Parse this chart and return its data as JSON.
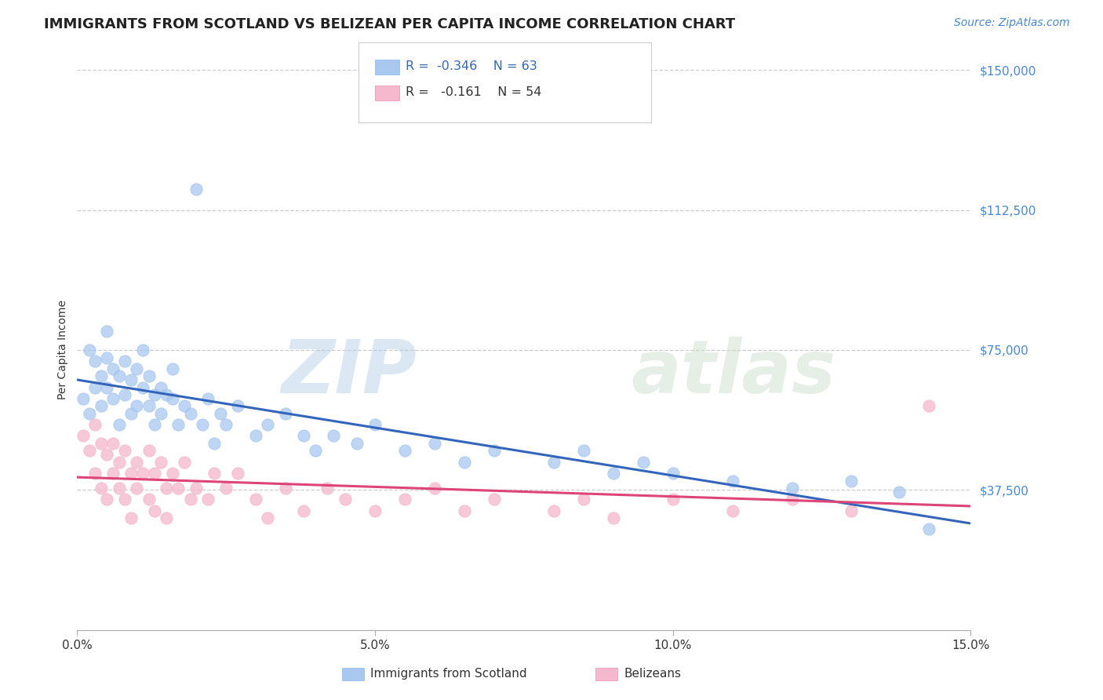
{
  "title": "IMMIGRANTS FROM SCOTLAND VS BELIZEAN PER CAPITA INCOME CORRELATION CHART",
  "source_text": "Source: ZipAtlas.com",
  "ylabel": "Per Capita Income",
  "xlim": [
    0.0,
    0.15
  ],
  "ylim": [
    0,
    150000
  ],
  "xtick_vals": [
    0.0,
    0.05,
    0.1,
    0.15
  ],
  "xtick_labels": [
    "0.0%",
    "5.0%",
    "10.0%",
    "15.0%"
  ],
  "ytick_vals": [
    37500,
    75000,
    112500,
    150000
  ],
  "ytick_labels": [
    "$37,500",
    "$75,000",
    "$112,500",
    "$150,000"
  ],
  "grid_color": "#cccccc",
  "background_color": "#ffffff",
  "scatter_blue_color": "#a8c8f0",
  "scatter_pink_color": "#f5b8cc",
  "line_blue_color": "#3366bb",
  "line_pink_color": "#dd4477",
  "legend_R1": "-0.346",
  "legend_N1": "63",
  "legend_R2": "-0.161",
  "legend_N2": "54",
  "legend_label1": "Immigrants from Scotland",
  "legend_label2": "Belizeans",
  "watermark_zip": "ZIP",
  "watermark_atlas": "atlas",
  "title_fontsize": 13,
  "axis_label_fontsize": 10,
  "tick_fontsize": 11,
  "ytick_color": "#4488dd",
  "source_fontsize": 10,
  "blue_scatter_x": [
    0.001,
    0.002,
    0.002,
    0.003,
    0.003,
    0.004,
    0.004,
    0.005,
    0.005,
    0.005,
    0.006,
    0.006,
    0.007,
    0.007,
    0.008,
    0.008,
    0.009,
    0.009,
    0.01,
    0.01,
    0.011,
    0.011,
    0.012,
    0.012,
    0.013,
    0.013,
    0.014,
    0.014,
    0.015,
    0.016,
    0.016,
    0.017,
    0.018,
    0.019,
    0.02,
    0.021,
    0.022,
    0.023,
    0.024,
    0.025,
    0.027,
    0.03,
    0.032,
    0.035,
    0.038,
    0.04,
    0.043,
    0.047,
    0.05,
    0.055,
    0.06,
    0.065,
    0.07,
    0.08,
    0.085,
    0.09,
    0.095,
    0.1,
    0.11,
    0.12,
    0.13,
    0.138,
    0.143
  ],
  "blue_scatter_y": [
    62000,
    58000,
    75000,
    65000,
    72000,
    68000,
    60000,
    73000,
    65000,
    80000,
    70000,
    62000,
    68000,
    55000,
    72000,
    63000,
    67000,
    58000,
    70000,
    60000,
    65000,
    75000,
    60000,
    68000,
    63000,
    55000,
    65000,
    58000,
    63000,
    62000,
    70000,
    55000,
    60000,
    58000,
    118000,
    55000,
    62000,
    50000,
    58000,
    55000,
    60000,
    52000,
    55000,
    58000,
    52000,
    48000,
    52000,
    50000,
    55000,
    48000,
    50000,
    45000,
    48000,
    45000,
    48000,
    42000,
    45000,
    42000,
    40000,
    38000,
    40000,
    37000,
    27000
  ],
  "pink_scatter_x": [
    0.001,
    0.002,
    0.003,
    0.003,
    0.004,
    0.004,
    0.005,
    0.005,
    0.006,
    0.006,
    0.007,
    0.007,
    0.008,
    0.008,
    0.009,
    0.009,
    0.01,
    0.01,
    0.011,
    0.012,
    0.012,
    0.013,
    0.013,
    0.014,
    0.015,
    0.015,
    0.016,
    0.017,
    0.018,
    0.019,
    0.02,
    0.022,
    0.023,
    0.025,
    0.027,
    0.03,
    0.032,
    0.035,
    0.038,
    0.042,
    0.045,
    0.05,
    0.055,
    0.06,
    0.065,
    0.07,
    0.08,
    0.085,
    0.09,
    0.1,
    0.11,
    0.12,
    0.13,
    0.143
  ],
  "pink_scatter_y": [
    52000,
    48000,
    55000,
    42000,
    50000,
    38000,
    47000,
    35000,
    50000,
    42000,
    45000,
    38000,
    48000,
    35000,
    42000,
    30000,
    45000,
    38000,
    42000,
    48000,
    35000,
    42000,
    32000,
    45000,
    38000,
    30000,
    42000,
    38000,
    45000,
    35000,
    38000,
    35000,
    42000,
    38000,
    42000,
    35000,
    30000,
    38000,
    32000,
    38000,
    35000,
    32000,
    35000,
    38000,
    32000,
    35000,
    32000,
    35000,
    30000,
    35000,
    32000,
    35000,
    32000,
    60000
  ]
}
